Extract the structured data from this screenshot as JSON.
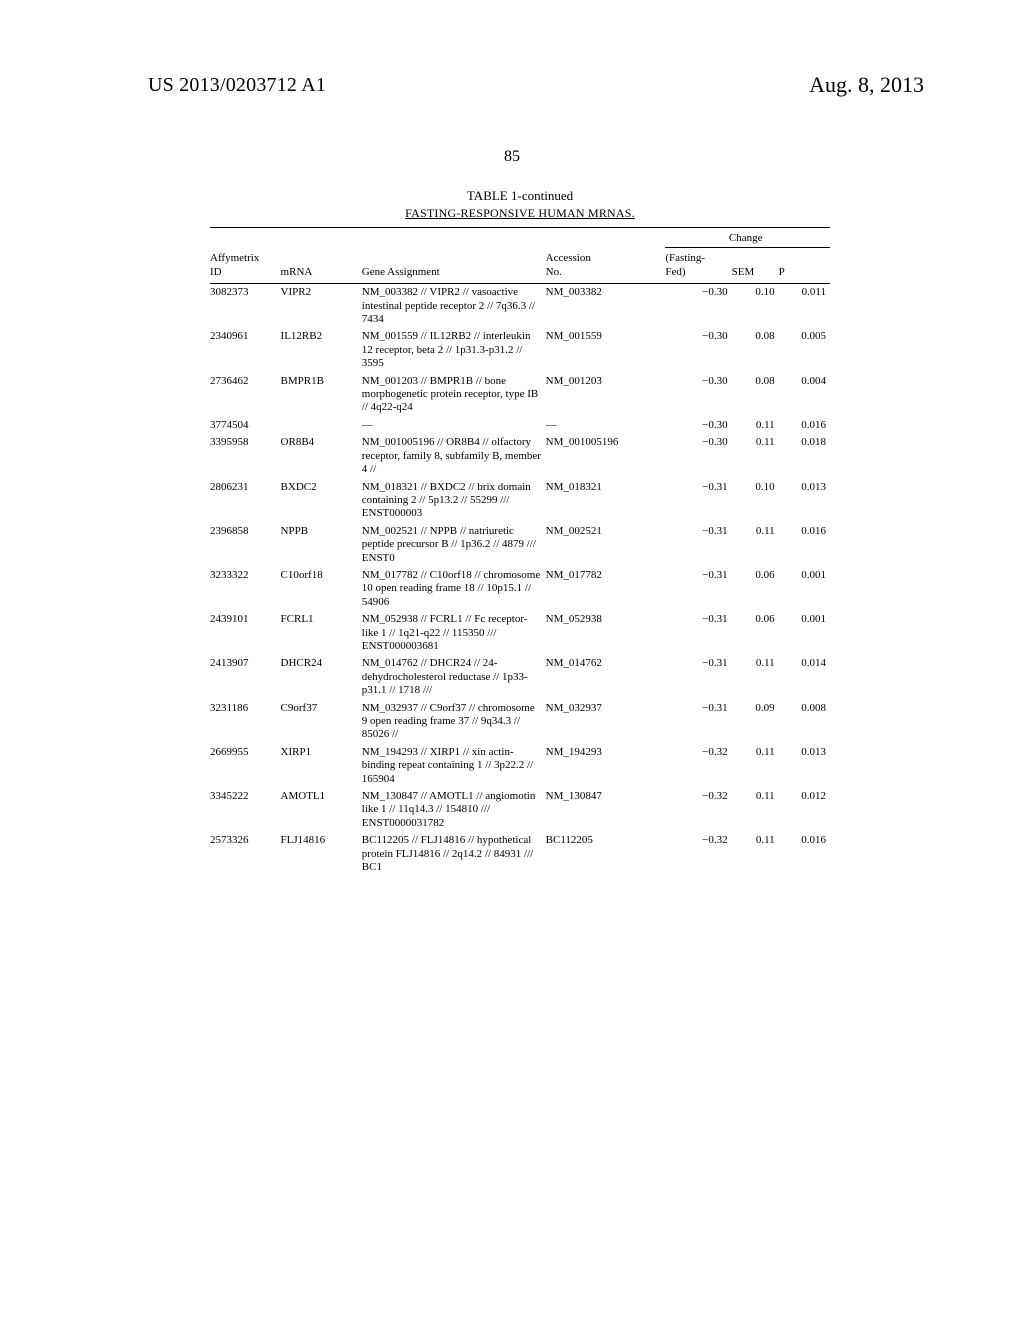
{
  "header": {
    "left": "US 2013/0203712 A1",
    "right": "Aug. 8, 2013",
    "page_number": "85"
  },
  "table": {
    "caption": "TABLE 1-continued",
    "subcaption": "FASTING-RESPONSIVE HUMAN MRNAS.",
    "change_header": "Change",
    "columns": {
      "affy_line1": "Affymetrix",
      "affy_line2": "ID",
      "mrna": "mRNA",
      "gene": "Gene Assignment",
      "acc_line1": "Accession",
      "acc_line2": "No.",
      "change_line1": "(Fasting-",
      "change_line2": "Fed)",
      "sem": "SEM",
      "p": "P"
    },
    "rows": [
      {
        "affy": "3082373",
        "mrna": "VIPR2",
        "gene": "NM_003382 // VIPR2 // vasoactive intestinal peptide receptor 2 // 7q36.3 // 7434",
        "acc": "NM_003382",
        "change": "−0.30",
        "sem": "0.10",
        "p": "0.011"
      },
      {
        "affy": "2340961",
        "mrna": "IL12RB2",
        "gene": "NM_001559 // IL12RB2 // interleukin 12 receptor, beta 2 // 1p31.3-p31.2 // 3595",
        "acc": "NM_001559",
        "change": "−0.30",
        "sem": "0.08",
        "p": "0.005"
      },
      {
        "affy": "2736462",
        "mrna": "BMPR1B",
        "gene": "NM_001203 // BMPR1B // bone morphogenetic protein receptor, type IB // 4q22-q24",
        "acc": "NM_001203",
        "change": "−0.30",
        "sem": "0.08",
        "p": "0.004"
      },
      {
        "affy": "3774504",
        "mrna": "",
        "gene": "—",
        "acc": "—",
        "change": "−0.30",
        "sem": "0.11",
        "p": "0.016"
      },
      {
        "affy": "3395958",
        "mrna": "OR8B4",
        "gene": "NM_001005196 // OR8B4 // olfactory receptor, family 8, subfamily B, member 4 //",
        "acc": "NM_001005196",
        "change": "−0.30",
        "sem": "0.11",
        "p": "0.018"
      },
      {
        "affy": "2806231",
        "mrna": "BXDC2",
        "gene": "NM_018321 // BXDC2 // brix domain containing 2 // 5p13.2 // 55299 /// ENST000003",
        "acc": "NM_018321",
        "change": "−0.31",
        "sem": "0.10",
        "p": "0.013"
      },
      {
        "affy": "2396858",
        "mrna": "NPPB",
        "gene": "NM_002521 // NPPB // natriuretic peptide precursor B // 1p36.2 // 4879 /// ENST0",
        "acc": "NM_002521",
        "change": "−0.31",
        "sem": "0.11",
        "p": "0.016"
      },
      {
        "affy": "3233322",
        "mrna": "C10orf18",
        "gene": "NM_017782 // C10orf18 // chromosome 10 open reading frame 18 // 10p15.1 // 54906",
        "acc": "NM_017782",
        "change": "−0.31",
        "sem": "0.06",
        "p": "0.001"
      },
      {
        "affy": "2439101",
        "mrna": "FCRL1",
        "gene": "NM_052938 // FCRL1 // Fc receptor-like 1 // 1q21-q22 // 115350 /// ENST000003681",
        "acc": "NM_052938",
        "change": "−0.31",
        "sem": "0.06",
        "p": "0.001"
      },
      {
        "affy": "2413907",
        "mrna": "DHCR24",
        "gene": "NM_014762 // DHCR24 // 24-dehydrocholesterol reductase // 1p33-p31.1 // 1718 ///",
        "acc": "NM_014762",
        "change": "−0.31",
        "sem": "0.11",
        "p": "0.014"
      },
      {
        "affy": "3231186",
        "mrna": "C9orf37",
        "gene": "NM_032937 // C9orf37 // chromosome 9 open reading frame 37 // 9q34.3 // 85026 //",
        "acc": "NM_032937",
        "change": "−0.31",
        "sem": "0.09",
        "p": "0.008"
      },
      {
        "affy": "2669955",
        "mrna": "XIRP1",
        "gene": "NM_194293 // XIRP1 // xin actin-binding repeat containing 1 // 3p22.2 // 165904",
        "acc": "NM_194293",
        "change": "−0.32",
        "sem": "0.11",
        "p": "0.013"
      },
      {
        "affy": "3345222",
        "mrna": "AMOTL1",
        "gene": "NM_130847 // AMOTL1 // angiomotin like 1 // 11q14.3 // 154810 /// ENST0000031782",
        "acc": "NM_130847",
        "change": "−0.32",
        "sem": "0.11",
        "p": "0.012"
      },
      {
        "affy": "2573326",
        "mrna": "FLJ14816",
        "gene": "BC112205 // FLJ14816 // hypothetical protein FLJ14816 // 2q14.2 // 84931 /// BC1",
        "acc": "BC112205",
        "change": "−0.32",
        "sem": "0.11",
        "p": "0.016"
      }
    ]
  }
}
